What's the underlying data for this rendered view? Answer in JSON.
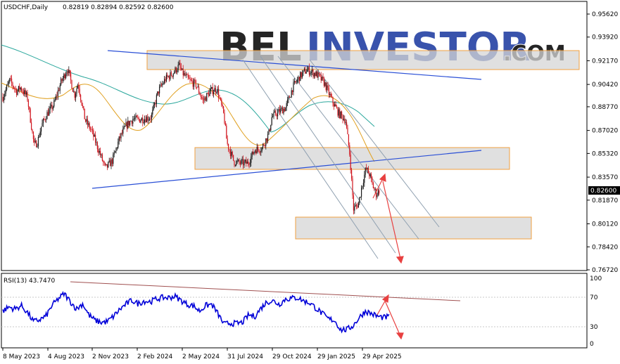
{
  "header": {
    "symbol": "USDCHF,Daily",
    "ohlc": "0.82819 0.82894 0.82592 0.82600"
  },
  "watermark": {
    "part1": "BEL",
    "part2": "INVESTOR",
    "part3": ".COM"
  },
  "rsi": {
    "label": "RSI(13) 43.7470",
    "ticks": [
      "100",
      "70",
      "30",
      "0"
    ]
  },
  "colors": {
    "bull": "#1a1a1a",
    "bear": "#d0161f",
    "ma_fast": "#e0a020",
    "ma_slow": "#2aa79c",
    "trend_blue": "#2a4fd6",
    "channel": "#8fa0b0",
    "zone_fill": "#d6d6d6",
    "zone_border": "#f0a040",
    "arrow": "#e84040",
    "rsi_line": "#0000d8",
    "rsi_trend": "#a05050",
    "price_tag": "#000000"
  },
  "chart_data": [
    {
      "type": "candlestick",
      "title": "USDCHF,Daily",
      "price_ticks": [
        "0.95620",
        "0.93920",
        "0.92170",
        "0.90420",
        "0.88770",
        "0.87020",
        "0.85320",
        "0.83570",
        "0.81870",
        "0.80120",
        "0.78420",
        "0.76720"
      ],
      "current_price": "0.82600",
      "x_ticks": [
        "8 May 2023",
        "4 Aug 2023",
        "2 Nov 2023",
        "2 Feb 2024",
        "2 May 2024",
        "31 Jul 2024",
        "29 Oct 2024",
        "29 Jan 2025",
        "29 Apr 2025"
      ],
      "ylim": [
        0.7672,
        0.9632
      ],
      "close_series": {
        "name": "",
        "dates": [
          "2023-05-08",
          "2023-05-22",
          "2023-06-05",
          "2023-06-12",
          "2023-06-26",
          "2023-07-10",
          "2023-07-17",
          "2023-07-24",
          "2023-08-04",
          "2023-08-18",
          "2023-09-01",
          "2023-09-15",
          "2023-09-29",
          "2023-10-06",
          "2023-10-20",
          "2023-11-02",
          "2023-11-16",
          "2023-11-30",
          "2023-12-14",
          "2023-12-28",
          "2024-01-11",
          "2024-01-25",
          "2024-02-02",
          "2024-02-16",
          "2024-03-01",
          "2024-03-15",
          "2024-03-29",
          "2024-04-12",
          "2024-04-26",
          "2024-05-02",
          "2024-05-16",
          "2024-05-30",
          "2024-06-13",
          "2024-06-27",
          "2024-07-11",
          "2024-07-25",
          "2024-07-31",
          "2024-08-14",
          "2024-08-28",
          "2024-09-11",
          "2024-09-25",
          "2024-10-09",
          "2024-10-23",
          "2024-10-29",
          "2024-11-12",
          "2024-11-26",
          "2024-12-10",
          "2024-12-24",
          "2025-01-07",
          "2025-01-14",
          "2025-01-29",
          "2025-02-12",
          "2025-02-26",
          "2025-03-12",
          "2025-03-26",
          "2025-04-04",
          "2025-04-11",
          "2025-04-21",
          "2025-04-29",
          "2025-05-06",
          "2025-05-13",
          "2025-05-20",
          "2025-05-27",
          "2025-06-02"
        ],
        "values": [
          0.895,
          0.907,
          0.899,
          0.902,
          0.895,
          0.859,
          0.862,
          0.873,
          0.882,
          0.889,
          0.905,
          0.916,
          0.896,
          0.905,
          0.878,
          0.87,
          0.856,
          0.842,
          0.848,
          0.864,
          0.874,
          0.879,
          0.878,
          0.879,
          0.88,
          0.899,
          0.908,
          0.912,
          0.918,
          0.913,
          0.907,
          0.904,
          0.892,
          0.899,
          0.901,
          0.881,
          0.861,
          0.847,
          0.846,
          0.846,
          0.856,
          0.857,
          0.868,
          0.88,
          0.884,
          0.887,
          0.902,
          0.91,
          0.915,
          0.914,
          0.911,
          0.905,
          0.893,
          0.883,
          0.878,
          0.851,
          0.812,
          0.816,
          0.831,
          0.842,
          0.838,
          0.829,
          0.823,
          0.826
        ]
      }
    },
    {
      "type": "line",
      "title": "RSI(13) 43.7470",
      "ylim": [
        0,
        100
      ],
      "y_ticks": [
        100,
        70,
        30,
        0
      ],
      "series": [
        {
          "name": "",
          "values": [
            52,
            58,
            55,
            60,
            50,
            36,
            39,
            44,
            60,
            70,
            78,
            66,
            55,
            63,
            46,
            38,
            35,
            36,
            44,
            54,
            62,
            68,
            63,
            67,
            66,
            70,
            72,
            72,
            74,
            68,
            62,
            60,
            52,
            60,
            62,
            48,
            32,
            34,
            33,
            35,
            46,
            44,
            56,
            66,
            67,
            62,
            70,
            71,
            72,
            67,
            64,
            56,
            48,
            40,
            38,
            24,
            24,
            30,
            42,
            52,
            48,
            44,
            42,
            43.7
          ]
        }
      ]
    }
  ]
}
